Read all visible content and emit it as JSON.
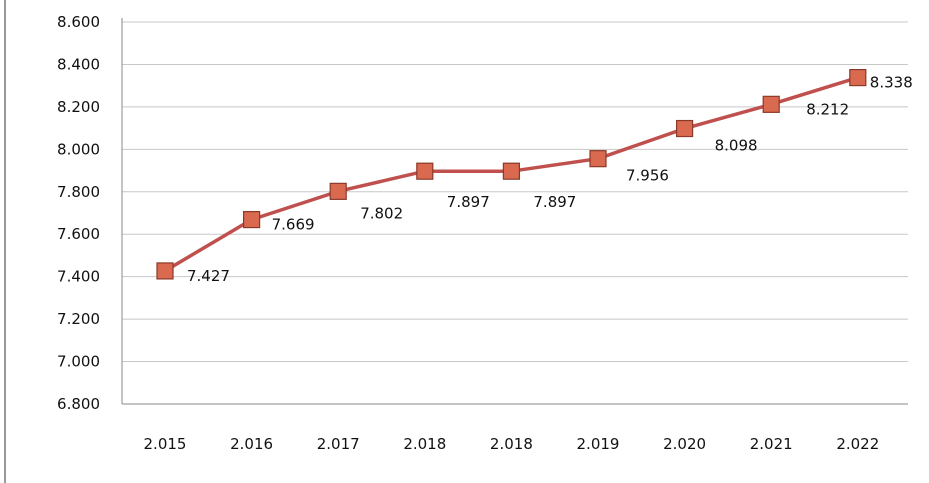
{
  "colors": {
    "line": "#c0504d",
    "marker_fill": "#d9694f",
    "marker_edge": "#8b3a2a",
    "grid": "#c8c8c8"
  },
  "chart_data": {
    "type": "line",
    "title": "",
    "xlabel": "",
    "ylabel": "",
    "grid": true,
    "legend": "none",
    "ylim": [
      6800,
      8600
    ],
    "y_ticks": [
      6800,
      7000,
      7200,
      7400,
      7600,
      7800,
      8000,
      8200,
      8400,
      8600
    ],
    "y_tick_labels": [
      "6.800",
      "7.000",
      "7.200",
      "7.400",
      "7.600",
      "7.800",
      "8.000",
      "8.200",
      "8.400",
      "8.600"
    ],
    "categories": [
      "2.015",
      "2.016",
      "2.017",
      "2.018",
      "2.018",
      "2.019",
      "2.020",
      "2.021",
      "2.022"
    ],
    "series": [
      {
        "values": [
          7427,
          7669,
          7802,
          7897,
          7897,
          7956,
          8098,
          8212,
          8338
        ],
        "labels": [
          "7.427",
          "7.669",
          "7.802",
          "7.897",
          "7.897",
          "7.956",
          "8.098",
          "8.212",
          "8.338"
        ]
      }
    ]
  }
}
